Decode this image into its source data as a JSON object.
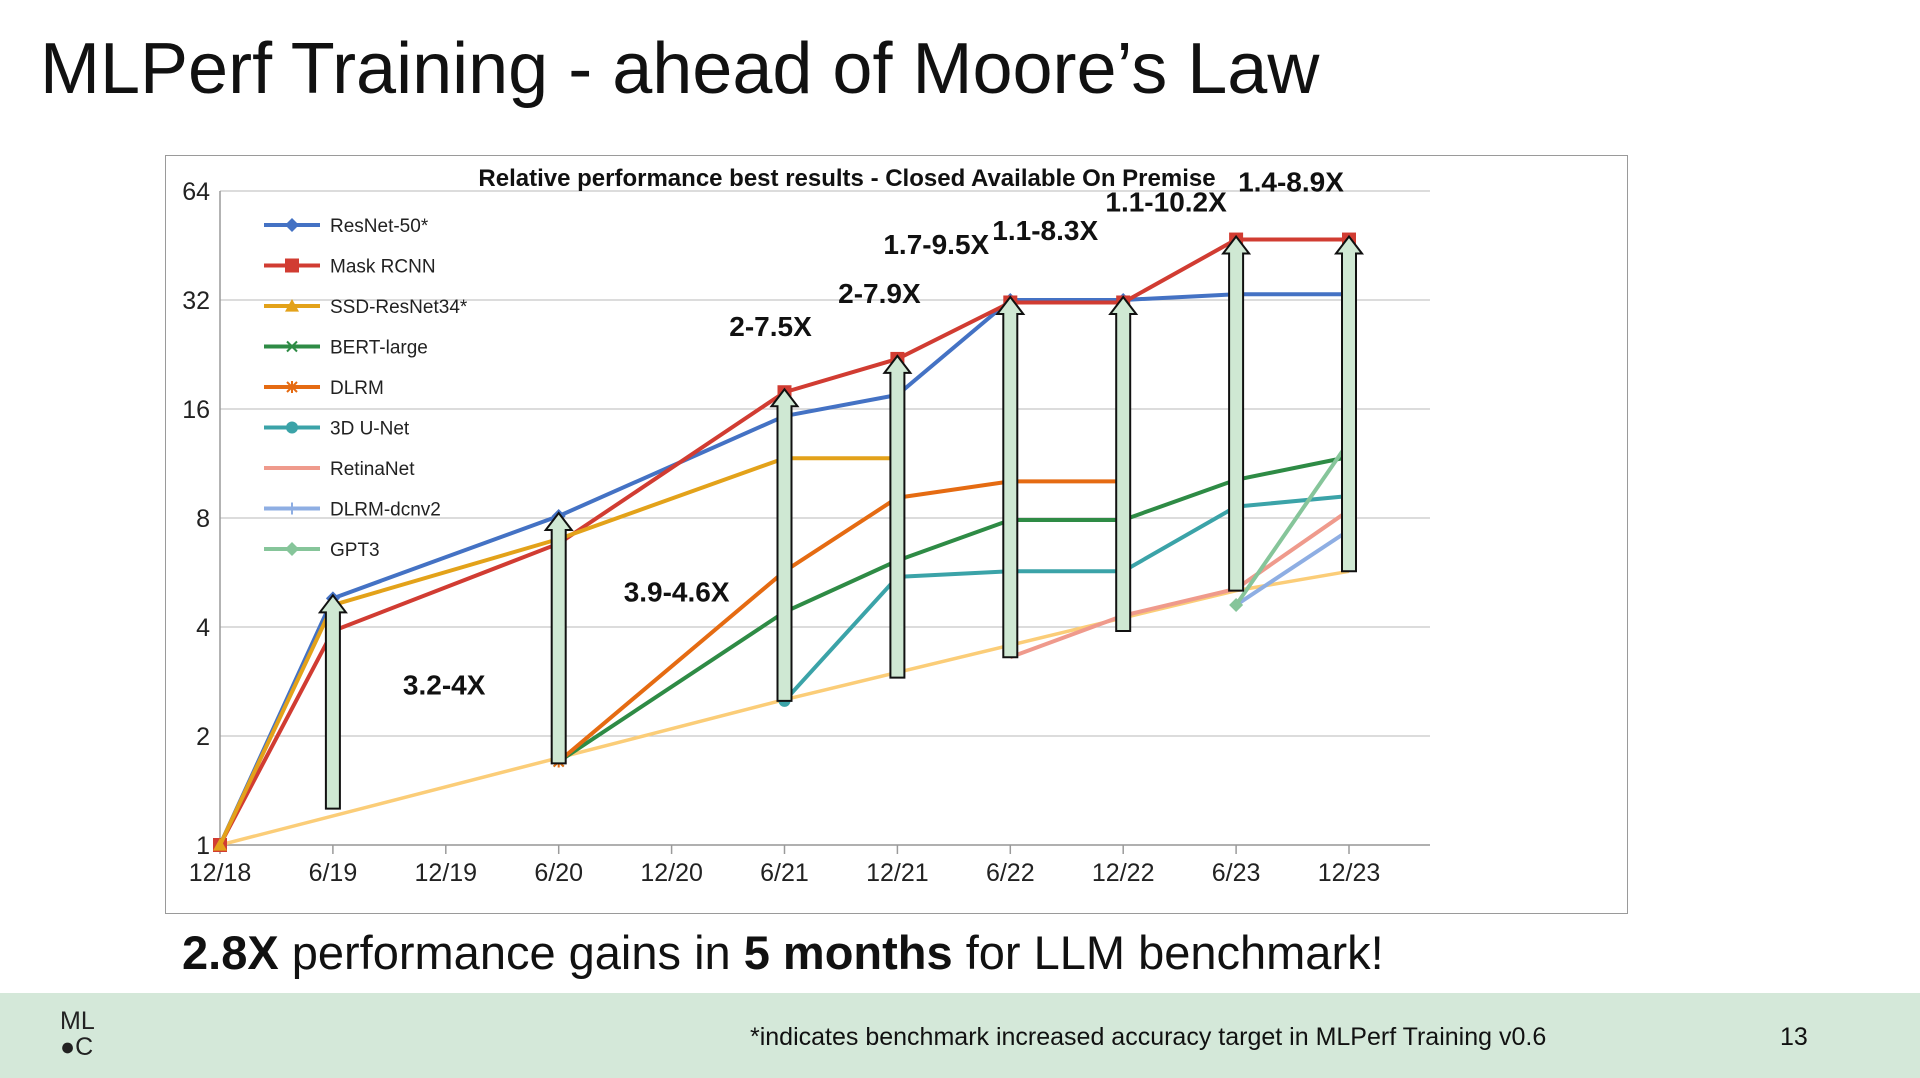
{
  "slide": {
    "title": "MLPerf Training - ahead of Moore’s Law",
    "caption": {
      "bold1": "2.8X",
      "text1": " performance gains in ",
      "bold2": "5 months",
      "text2": " for LLM benchmark!"
    },
    "footnote": "*indicates benchmark increased accuracy target in MLPerf Training v0.6",
    "page_number": "13",
    "logo": {
      "line1": "ML",
      "line2": "●C"
    }
  },
  "chart_data": {
    "type": "line",
    "title": "Relative performance best results -  Closed Available On Premise",
    "y_scale": "log2",
    "ylim": [
      1,
      64
    ],
    "y_ticks": [
      1,
      2,
      4,
      8,
      16,
      32,
      64
    ],
    "x_ticks": [
      "12/18",
      "6/19",
      "12/19",
      "6/20",
      "12/20",
      "6/21",
      "12/21",
      "6/22",
      "12/22",
      "6/23",
      "12/23"
    ],
    "legend_position": "top-left",
    "grid": "horizontal",
    "series": [
      {
        "name": "ResNet-50*",
        "color": "#4472c4",
        "marker": "diamond",
        "points": [
          [
            "12/18",
            1
          ],
          [
            "6/19",
            4.8
          ],
          [
            "6/20",
            8.1
          ],
          [
            "6/21",
            15.3
          ],
          [
            "12/21",
            17.5
          ],
          [
            "6/22",
            32
          ],
          [
            "12/22",
            32
          ],
          [
            "6/23",
            33.2
          ],
          [
            "12/23",
            33.2
          ]
        ]
      },
      {
        "name": "Mask RCNN",
        "color": "#d13c32",
        "marker": "square",
        "points": [
          [
            "12/18",
            1
          ],
          [
            "6/19",
            3.9
          ],
          [
            "6/20",
            6.8
          ],
          [
            "6/21",
            17.8
          ],
          [
            "12/21",
            22
          ],
          [
            "6/22",
            31.5
          ],
          [
            "12/22",
            31.5
          ],
          [
            "6/23",
            47
          ],
          [
            "12/23",
            47
          ]
        ]
      },
      {
        "name": "SSD-ResNet34*",
        "color": "#e3a21a",
        "marker": "triangle",
        "points": [
          [
            "12/18",
            1
          ],
          [
            "6/19",
            4.6
          ],
          [
            "6/20",
            7
          ],
          [
            "6/21",
            11.7
          ],
          [
            "12/21",
            11.7
          ]
        ]
      },
      {
        "name": "BERT-large",
        "color": "#2e8b45",
        "marker": "x",
        "points": [
          [
            "6/20",
            1.7
          ],
          [
            "6/21",
            4.4
          ],
          [
            "12/21",
            6.1
          ],
          [
            "6/22",
            7.9
          ],
          [
            "12/22",
            7.9
          ],
          [
            "6/23",
            10.2
          ],
          [
            "12/23",
            11.8
          ]
        ]
      },
      {
        "name": "DLRM",
        "color": "#e56b12",
        "marker": "star",
        "points": [
          [
            "6/20",
            1.7
          ],
          [
            "6/21",
            5.7
          ],
          [
            "12/21",
            9.1
          ],
          [
            "6/22",
            10.1
          ],
          [
            "12/22",
            10.1
          ]
        ]
      },
      {
        "name": "3D U-Net",
        "color": "#3ba3a8",
        "marker": "circle",
        "points": [
          [
            "6/21",
            2.5
          ],
          [
            "12/21",
            5.5
          ],
          [
            "6/22",
            5.7
          ],
          [
            "12/22",
            5.7
          ],
          [
            "6/23",
            8.6
          ],
          [
            "12/23",
            9.2
          ]
        ]
      },
      {
        "name": "RetinaNet",
        "color": "#ef9a8c",
        "marker": "none",
        "points": [
          [
            "6/22",
            3.3
          ],
          [
            "12/22",
            4.3
          ],
          [
            "6/23",
            5.1
          ],
          [
            "12/23",
            8.4
          ]
        ]
      },
      {
        "name": "DLRM-dcnv2",
        "color": "#8eaee3",
        "marker": "plus",
        "points": [
          [
            "6/23",
            4.6
          ],
          [
            "12/23",
            7.4
          ]
        ]
      },
      {
        "name": "GPT3",
        "color": "#86c59a",
        "marker": "diamond",
        "points": [
          [
            "6/23",
            4.6
          ],
          [
            "12/23",
            13
          ]
        ]
      },
      {
        "name": "",
        "color": "#fbcd78",
        "marker": "none",
        "points": [
          [
            "12/18",
            1
          ],
          [
            "6/21",
            2.52
          ],
          [
            "6/23",
            5.04
          ],
          [
            "12/23",
            5.7
          ]
        ]
      }
    ],
    "annotations": [
      {
        "x": "6/19",
        "y_low": 1.26,
        "y_high": 4.8,
        "label": "3.2-4X"
      },
      {
        "x": "6/20",
        "y_low": 1.68,
        "y_high": 8.1,
        "label": "3.9-4.6X"
      },
      {
        "x": "6/21",
        "y_low": 2.5,
        "y_high": 17.8,
        "label": "2-7.5X"
      },
      {
        "x": "12/21",
        "y_low": 2.9,
        "y_high": 22,
        "label": "2-7.9X"
      },
      {
        "x": "6/22",
        "y_low": 3.3,
        "y_high": 32,
        "label": "1.7-9.5X"
      },
      {
        "x": "12/22",
        "y_low": 3.9,
        "y_high": 32,
        "label": "1.1-8.3X"
      },
      {
        "x": "6/23",
        "y_low": 5.04,
        "y_high": 47,
        "label": "1.1-10.2X"
      },
      {
        "x": "12/23",
        "y_low": 5.7,
        "y_high": 47,
        "label": "1.4-8.9X"
      }
    ]
  }
}
